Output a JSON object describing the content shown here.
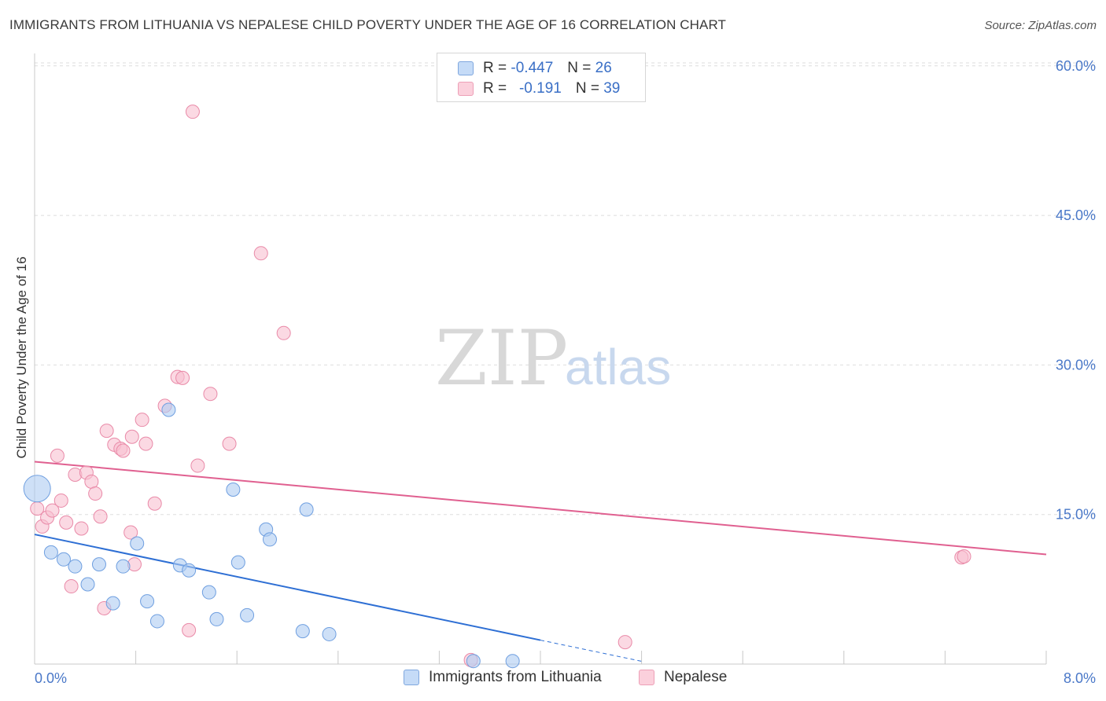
{
  "header": {
    "title": "IMMIGRANTS FROM LITHUANIA VS NEPALESE CHILD POVERTY UNDER THE AGE OF 16 CORRELATION CHART",
    "source": "Source: ZipAtlas.com"
  },
  "watermark": {
    "zip": "ZIP",
    "atlas": "atlas"
  },
  "legend": {
    "rows": [
      {
        "r_label": "R =",
        "r_value": "-0.447",
        "n_label": "N =",
        "n_value": "26"
      },
      {
        "r_label": "R =",
        "r_value": "-0.191",
        "n_label": "N =",
        "n_value": "39"
      }
    ]
  },
  "bottom_legend": {
    "series1": "Immigrants from Lithuania",
    "series2": "Nepalese"
  },
  "colors": {
    "series1_fill": "#aecbf2",
    "series1_stroke": "#6f9fe0",
    "series1_line": "#2e6fd4",
    "series2_fill": "#f8c0d0",
    "series2_stroke": "#e98aa8",
    "series2_line": "#e06090",
    "tick_label": "#4a78c8",
    "grid": "#dedede"
  },
  "chart_data": {
    "type": "scatter",
    "title": "IMMIGRANTS FROM LITHUANIA VS NEPALESE CHILD POVERTY UNDER THE AGE OF 16 CORRELATION CHART",
    "xlabel": "",
    "ylabel": "Child Poverty Under the Age of 16",
    "xlim": [
      0,
      8
    ],
    "ylim": [
      0,
      63
    ],
    "x_tick_labels": [
      "0.0%",
      "8.0%"
    ],
    "y_ticks": [
      15,
      30,
      45,
      60
    ],
    "y_tick_labels": [
      "15.0%",
      "30.0%",
      "45.0%",
      "60.0%"
    ],
    "grid": true,
    "legend_position": "top-center",
    "series": [
      {
        "name": "Immigrants from Lithuania",
        "r": -0.447,
        "n": 26,
        "points": [
          {
            "x": 0.02,
            "y": 17.6,
            "big": true
          },
          {
            "x": 0.13,
            "y": 11.2
          },
          {
            "x": 0.23,
            "y": 10.5
          },
          {
            "x": 0.32,
            "y": 9.8
          },
          {
            "x": 0.42,
            "y": 8.0
          },
          {
            "x": 0.51,
            "y": 10.0
          },
          {
            "x": 0.62,
            "y": 6.1
          },
          {
            "x": 0.7,
            "y": 9.8
          },
          {
            "x": 0.81,
            "y": 12.1
          },
          {
            "x": 0.89,
            "y": 6.3
          },
          {
            "x": 0.97,
            "y": 4.3
          },
          {
            "x": 1.06,
            "y": 25.5
          },
          {
            "x": 1.15,
            "y": 9.9
          },
          {
            "x": 1.22,
            "y": 9.4
          },
          {
            "x": 1.38,
            "y": 7.2
          },
          {
            "x": 1.44,
            "y": 4.5
          },
          {
            "x": 1.57,
            "y": 17.5
          },
          {
            "x": 1.61,
            "y": 10.2
          },
          {
            "x": 1.68,
            "y": 4.9
          },
          {
            "x": 1.83,
            "y": 13.5
          },
          {
            "x": 1.86,
            "y": 12.5
          },
          {
            "x": 2.12,
            "y": 3.3
          },
          {
            "x": 2.15,
            "y": 15.5
          },
          {
            "x": 2.33,
            "y": 3.0
          },
          {
            "x": 3.47,
            "y": 0.3
          },
          {
            "x": 3.78,
            "y": 0.3
          }
        ],
        "trend": {
          "x0": 0,
          "y0": 13.0,
          "x1": 4.0,
          "y1": 2.4,
          "dash_to_x": 4.8
        }
      },
      {
        "name": "Nepalese",
        "r": -0.191,
        "n": 39,
        "points": [
          {
            "x": 0.02,
            "y": 15.6
          },
          {
            "x": 0.06,
            "y": 13.8
          },
          {
            "x": 0.1,
            "y": 14.7
          },
          {
            "x": 0.14,
            "y": 15.4
          },
          {
            "x": 0.18,
            "y": 20.9
          },
          {
            "x": 0.21,
            "y": 16.4
          },
          {
            "x": 0.25,
            "y": 14.2
          },
          {
            "x": 0.29,
            "y": 7.8
          },
          {
            "x": 0.32,
            "y": 19.0
          },
          {
            "x": 0.37,
            "y": 13.6
          },
          {
            "x": 0.41,
            "y": 19.2
          },
          {
            "x": 0.45,
            "y": 18.3
          },
          {
            "x": 0.48,
            "y": 17.1
          },
          {
            "x": 0.52,
            "y": 14.8
          },
          {
            "x": 0.55,
            "y": 5.6
          },
          {
            "x": 0.57,
            "y": 23.4
          },
          {
            "x": 0.63,
            "y": 22.0
          },
          {
            "x": 0.68,
            "y": 21.6
          },
          {
            "x": 0.7,
            "y": 21.4
          },
          {
            "x": 0.76,
            "y": 13.2
          },
          {
            "x": 0.77,
            "y": 22.8
          },
          {
            "x": 0.79,
            "y": 10.0
          },
          {
            "x": 0.85,
            "y": 24.5
          },
          {
            "x": 0.88,
            "y": 22.1
          },
          {
            "x": 0.95,
            "y": 16.1
          },
          {
            "x": 1.03,
            "y": 25.9
          },
          {
            "x": 1.13,
            "y": 28.8
          },
          {
            "x": 1.17,
            "y": 28.7
          },
          {
            "x": 1.22,
            "y": 3.4
          },
          {
            "x": 1.25,
            "y": 55.4
          },
          {
            "x": 1.29,
            "y": 19.9
          },
          {
            "x": 1.39,
            "y": 27.1
          },
          {
            "x": 1.54,
            "y": 22.1
          },
          {
            "x": 1.79,
            "y": 41.2
          },
          {
            "x": 1.97,
            "y": 33.2
          },
          {
            "x": 3.45,
            "y": 0.4
          },
          {
            "x": 4.67,
            "y": 2.2
          },
          {
            "x": 7.33,
            "y": 10.7
          },
          {
            "x": 7.35,
            "y": 10.8
          }
        ],
        "trend": {
          "x0": 0,
          "y0": 20.3,
          "x1": 8.0,
          "y1": 11.0
        }
      }
    ]
  }
}
